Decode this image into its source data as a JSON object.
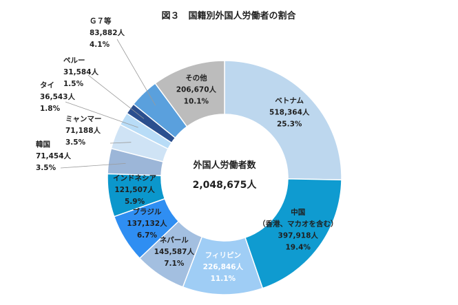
{
  "chart_data": {
    "type": "pie",
    "variant": "donut",
    "title": "図３　国籍別外国人労働者の割合",
    "center_label": "外国人労働者数",
    "center_value": "2,048,675人",
    "unit": "人",
    "slices": [
      {
        "name": "ベトナム",
        "value": 518364,
        "value_label": "518,364人",
        "percent": 25.3,
        "percent_label": "25.3%",
        "color": "#bdd7ee",
        "label_color": "#1f1f1f",
        "sublabel": ""
      },
      {
        "name": "中国",
        "sublabel": "（香港、マカオを含む）",
        "value": 397918,
        "value_label": "397,918人",
        "percent": 19.4,
        "percent_label": "19.4%",
        "color": "#0f9bd0",
        "label_color": "#1f1f1f"
      },
      {
        "name": "フィリピン",
        "value": 226846,
        "value_label": "226,846人",
        "percent": 11.1,
        "percent_label": "11.1%",
        "color": "#9fcdf5",
        "label_color": "#ffffff",
        "sublabel": ""
      },
      {
        "name": "ネパール",
        "value": 145587,
        "value_label": "145,587人",
        "percent": 7.1,
        "percent_label": "7.1%",
        "color": "#a3bfe0",
        "label_color": "#1f1f1f",
        "sublabel": ""
      },
      {
        "name": "ブラジル",
        "value": 137132,
        "value_label": "137,132人",
        "percent": 6.7,
        "percent_label": "6.7%",
        "color": "#2f8ef2",
        "label_color": "#1f1f1f",
        "sublabel": ""
      },
      {
        "name": "インドネシア",
        "value": 121507,
        "value_label": "121,507人",
        "percent": 5.9,
        "percent_label": "5.9%",
        "color": "#0b97cc",
        "label_color": "#1f1f1f",
        "sublabel": ""
      },
      {
        "name": "韓国",
        "value": 71454,
        "value_label": "71,454人",
        "percent": 3.5,
        "percent_label": "3.5%",
        "color": "#9cb6d8",
        "label_color": "#1f1f1f",
        "sublabel": ""
      },
      {
        "name": "ミャンマー",
        "value": 71188,
        "value_label": "71,188人",
        "percent": 3.5,
        "percent_label": "3.5%",
        "color": "#cfe3f5",
        "label_color": "#1f1f1f",
        "sublabel": ""
      },
      {
        "name": "タイ",
        "value": 36543,
        "value_label": "36,543人",
        "percent": 1.8,
        "percent_label": "1.8%",
        "color": "#b8dcf7",
        "label_color": "#1f1f1f",
        "sublabel": ""
      },
      {
        "name": "ペルー",
        "value": 31584,
        "value_label": "31,584人",
        "percent": 1.5,
        "percent_label": "1.5%",
        "color": "#2b4f8e",
        "label_color": "#1f1f1f",
        "sublabel": ""
      },
      {
        "name": "Ｇ７等",
        "value": 83882,
        "value_label": "83,882人",
        "percent": 4.1,
        "percent_label": "4.1%",
        "color": "#5aa0dd",
        "label_color": "#1f1f1f",
        "sublabel": ""
      },
      {
        "name": "その他",
        "value": 206670,
        "value_label": "206,670人",
        "percent": 10.1,
        "percent_label": "10.1%",
        "color": "#bcbcbc",
        "label_color": "#1f1f1f",
        "sublabel": ""
      }
    ]
  }
}
